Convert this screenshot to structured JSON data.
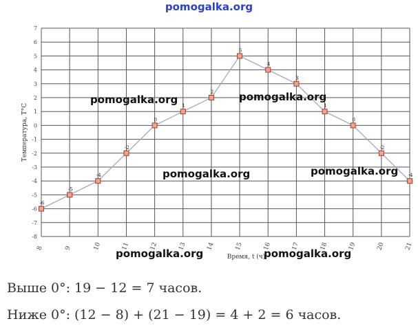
{
  "header": {
    "site_label": "pomogalka.org"
  },
  "watermarks": [
    "pomogalka.org",
    "pomogalka.org",
    "pomogalka.org",
    "pomogalka.org",
    "pomogalka.org",
    "pomogalka.org"
  ],
  "colors": {
    "line": "#9aa2cc",
    "marker_fill": "#f4a38c",
    "marker_stroke": "#a0402a",
    "grid": "#555555",
    "title": "#2a3fd0"
  },
  "chart_data": {
    "type": "line",
    "xlabel": "Время, t (ч)",
    "ylabel": "Температура, T°C",
    "xlim": [
      8,
      21
    ],
    "ylim": [
      -8,
      7
    ],
    "grid": true,
    "x": [
      8,
      9,
      10,
      11,
      12,
      13,
      14,
      15,
      16,
      17,
      18,
      19,
      20,
      21
    ],
    "series": [
      {
        "values": [
          -6,
          -5,
          -4,
          -2,
          0,
          1,
          2,
          5,
          4,
          3,
          1,
          0,
          -2,
          -4
        ]
      }
    ],
    "data_labels": [
      "-6",
      "-5",
      "-4",
      "-2",
      "0",
      "1",
      "2",
      "5",
      "4",
      "3",
      "1",
      "0",
      "-2",
      "-4"
    ],
    "x_ticks": [
      "8",
      "9",
      "10",
      "11",
      "12",
      "13",
      "14",
      "15",
      "16",
      "17",
      "18",
      "19",
      "20",
      "21"
    ],
    "y_ticks": [
      "7",
      "6",
      "5",
      "4",
      "3",
      "2",
      "1",
      "0",
      "-1",
      "-2",
      "-3",
      "-4",
      "-5",
      "-6",
      "-7",
      "-8"
    ]
  },
  "explanation": {
    "line1": "Выше 0°:   19 − 12 = 7 часов.",
    "line2": "Ниже 0°:   (12 − 8) + (21 − 19) = 4 + 2 = 6 часов."
  }
}
